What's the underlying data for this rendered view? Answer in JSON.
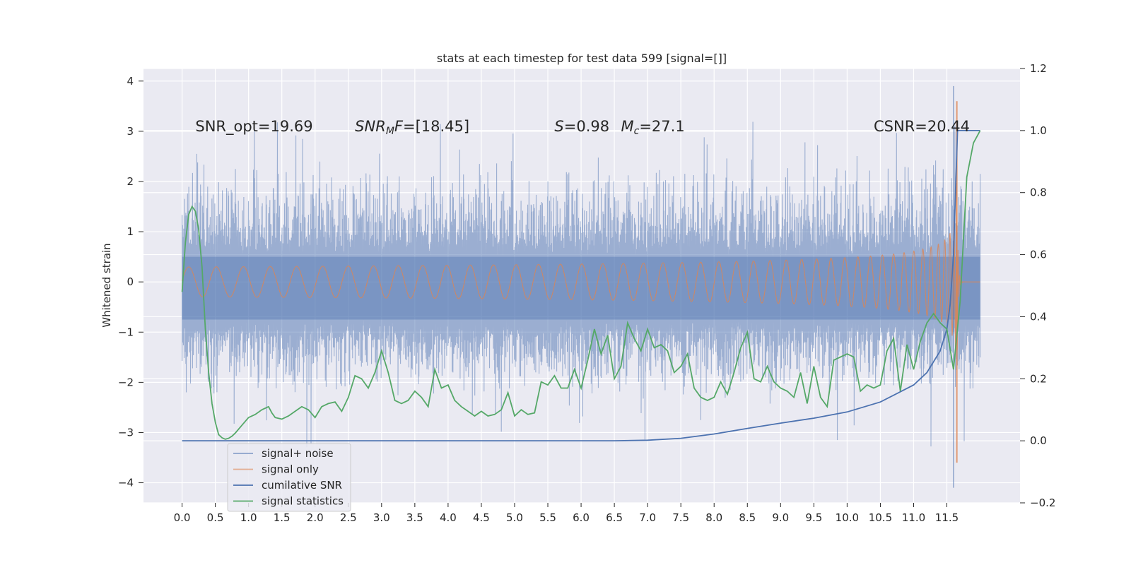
{
  "chart_data": {
    "type": "line",
    "title": "stats at each timestep for test data 599 [signal=[]]",
    "ylabel": "Whitened strain",
    "xlim": [
      -0.58,
      12.6
    ],
    "ylim": [
      -4.4,
      4.25
    ],
    "y2lim": [
      -0.2,
      1.2
    ],
    "grid": true,
    "x_ticks": [
      0.0,
      0.5,
      1.0,
      1.5,
      2.0,
      2.5,
      3.0,
      3.5,
      4.0,
      4.5,
      5.0,
      5.5,
      6.0,
      6.5,
      7.0,
      7.5,
      8.0,
      8.5,
      9.0,
      9.5,
      10.0,
      10.5,
      11.0,
      11.5
    ],
    "x_tick_labels": [
      "0.0",
      "0.5",
      "1.0",
      "1.5",
      "2.0",
      "2.5",
      "3.0",
      "3.5",
      "4.0",
      "4.5",
      "5.0",
      "5.5",
      "6.0",
      "6.5",
      "7.0",
      "7.5",
      "8.0",
      "8.5",
      "9.0",
      "9.5",
      "10.0",
      "10.5",
      "11.0",
      "11.5"
    ],
    "y_ticks": [
      -4,
      -3,
      -2,
      -1,
      0,
      1,
      2,
      3,
      4
    ],
    "y_tick_labels": [
      "−4",
      "−3",
      "−2",
      "−1",
      "0",
      "1",
      "2",
      "3",
      "4"
    ],
    "y2_ticks": [
      -0.2,
      0.0,
      0.2,
      0.4,
      0.6,
      0.8,
      1.0,
      1.2
    ],
    "y2_tick_labels": [
      "−0.2",
      "0.0",
      "0.2",
      "0.4",
      "0.6",
      "0.8",
      "1.0",
      "1.2"
    ],
    "annotations": [
      {
        "text": "SNR_opt=19.69",
        "x": 0.2,
        "y": 3.1
      },
      {
        "text": "SNR_MF=[18.45]",
        "x": 2.6,
        "y": 3.1
      },
      {
        "text": "S=0.98",
        "x": 5.6,
        "y": 3.1
      },
      {
        "text": "M_c=27.1",
        "x": 6.6,
        "y": 3.1
      },
      {
        "text": "CSNR=20.44",
        "x": 10.4,
        "y": 3.1
      }
    ],
    "legend": {
      "position": "lower-left",
      "entries": [
        {
          "label": "signal+ noise",
          "color": "#4c72b0"
        },
        {
          "label": "signal only",
          "color": "#dd8452"
        },
        {
          "label": "cumilative SNR",
          "color": "#4c72b0"
        },
        {
          "label": "signal statistics",
          "color": "#55a868"
        }
      ]
    },
    "series": [
      {
        "name": "signal+ noise",
        "axis": "left",
        "color": "#4c72b0",
        "kind": "dense-noise",
        "x_range": [
          0.0,
          12.0
        ],
        "band": [
          -0.75,
          0.5
        ],
        "typical_peaks": [
          -1.8,
          1.8
        ],
        "extreme_peaks": [
          -4.1,
          3.9
        ]
      },
      {
        "name": "signal only",
        "axis": "left",
        "color": "#dd8452",
        "kind": "chirp",
        "x_range": [
          0.0,
          12.0
        ],
        "peak_time": 11.65,
        "peak_amplitude": 3.6
      },
      {
        "name": "cumilative SNR",
        "axis": "right",
        "color": "#4c72b0",
        "x": [
          0.0,
          1.0,
          2.0,
          3.0,
          4.0,
          5.0,
          6.0,
          6.5,
          7.0,
          7.5,
          8.0,
          8.5,
          9.0,
          9.5,
          10.0,
          10.5,
          11.0,
          11.2,
          11.4,
          11.5,
          11.55,
          11.6,
          11.63,
          11.66,
          12.0
        ],
        "values": [
          0.0,
          0.0,
          0.0,
          0.0,
          0.0,
          0.0,
          0.0,
          0.0,
          0.002,
          0.008,
          0.022,
          0.04,
          0.057,
          0.073,
          0.093,
          0.125,
          0.18,
          0.22,
          0.29,
          0.36,
          0.44,
          0.6,
          0.8,
          1.0,
          1.0
        ]
      },
      {
        "name": "signal statistics",
        "axis": "right",
        "color": "#55a868",
        "x": [
          0.0,
          0.05,
          0.1,
          0.15,
          0.2,
          0.25,
          0.3,
          0.35,
          0.4,
          0.45,
          0.5,
          0.55,
          0.6,
          0.65,
          0.7,
          0.75,
          0.8,
          0.9,
          1.0,
          1.1,
          1.2,
          1.3,
          1.35,
          1.4,
          1.5,
          1.6,
          1.7,
          1.8,
          1.9,
          2.0,
          2.1,
          2.2,
          2.3,
          2.4,
          2.5,
          2.6,
          2.7,
          2.8,
          2.9,
          3.0,
          3.1,
          3.2,
          3.3,
          3.4,
          3.5,
          3.6,
          3.7,
          3.8,
          3.9,
          4.0,
          4.1,
          4.2,
          4.3,
          4.4,
          4.5,
          4.6,
          4.7,
          4.8,
          4.9,
          5.0,
          5.1,
          5.2,
          5.3,
          5.4,
          5.5,
          5.6,
          5.7,
          5.8,
          5.9,
          6.0,
          6.1,
          6.2,
          6.3,
          6.4,
          6.5,
          6.6,
          6.7,
          6.8,
          6.9,
          7.0,
          7.1,
          7.2,
          7.3,
          7.4,
          7.5,
          7.6,
          7.7,
          7.8,
          7.9,
          8.0,
          8.1,
          8.2,
          8.3,
          8.4,
          8.5,
          8.6,
          8.7,
          8.8,
          8.9,
          9.0,
          9.1,
          9.2,
          9.3,
          9.4,
          9.5,
          9.6,
          9.7,
          9.8,
          9.9,
          10.0,
          10.1,
          10.2,
          10.3,
          10.4,
          10.5,
          10.6,
          10.7,
          10.8,
          10.9,
          11.0,
          11.1,
          11.2,
          11.3,
          11.4,
          11.5,
          11.6,
          11.7,
          11.8,
          11.9,
          12.0
        ],
        "values": [
          0.48,
          0.64,
          0.73,
          0.755,
          0.74,
          0.68,
          0.56,
          0.36,
          0.22,
          0.12,
          0.06,
          0.02,
          0.01,
          0.005,
          0.008,
          0.015,
          0.025,
          0.05,
          0.075,
          0.085,
          0.1,
          0.11,
          0.09,
          0.075,
          0.07,
          0.08,
          0.095,
          0.11,
          0.1,
          0.075,
          0.11,
          0.12,
          0.125,
          0.095,
          0.14,
          0.21,
          0.2,
          0.17,
          0.22,
          0.29,
          0.22,
          0.13,
          0.12,
          0.13,
          0.16,
          0.14,
          0.11,
          0.23,
          0.17,
          0.18,
          0.13,
          0.11,
          0.095,
          0.08,
          0.095,
          0.08,
          0.085,
          0.1,
          0.155,
          0.08,
          0.1,
          0.085,
          0.09,
          0.19,
          0.18,
          0.21,
          0.17,
          0.17,
          0.23,
          0.17,
          0.26,
          0.36,
          0.28,
          0.34,
          0.2,
          0.24,
          0.38,
          0.33,
          0.29,
          0.36,
          0.3,
          0.31,
          0.29,
          0.22,
          0.24,
          0.28,
          0.17,
          0.14,
          0.13,
          0.14,
          0.19,
          0.15,
          0.22,
          0.3,
          0.35,
          0.2,
          0.19,
          0.24,
          0.19,
          0.17,
          0.16,
          0.14,
          0.22,
          0.12,
          0.24,
          0.14,
          0.11,
          0.26,
          0.27,
          0.28,
          0.27,
          0.16,
          0.18,
          0.17,
          0.18,
          0.29,
          0.33,
          0.16,
          0.31,
          0.23,
          0.32,
          0.38,
          0.41,
          0.38,
          0.36,
          0.23,
          0.45,
          0.85,
          0.96,
          1.0
        ]
      }
    ]
  }
}
